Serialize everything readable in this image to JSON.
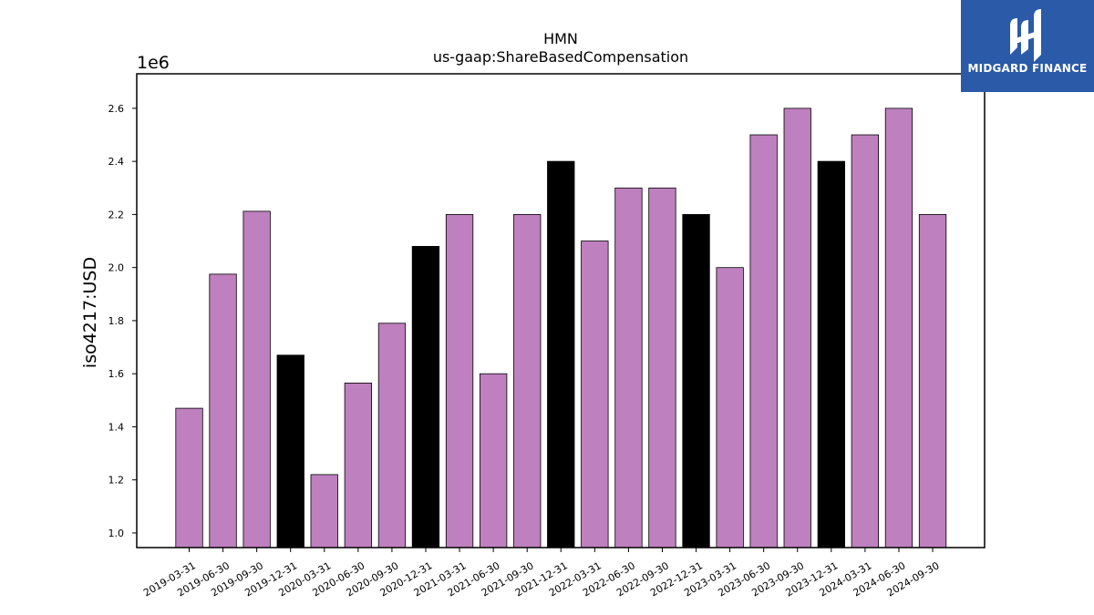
{
  "chart_data": {
    "type": "bar",
    "title": "HMN",
    "subtitle": "us-gaap:ShareBasedCompensation",
    "ylabel": "iso4217:USD",
    "y_offset_label": "1e6",
    "ylim": [
      945000,
      2730000
    ],
    "yticks": [
      1.0,
      1.2,
      1.4,
      1.6,
      1.8,
      2.0,
      2.2,
      2.4,
      2.6
    ],
    "categories": [
      "2019-03-31",
      "2019-06-30",
      "2019-09-30",
      "2019-12-31",
      "2020-03-31",
      "2020-06-30",
      "2020-09-30",
      "2020-12-31",
      "2021-03-31",
      "2021-06-30",
      "2021-09-30",
      "2021-12-31",
      "2022-03-31",
      "2022-06-30",
      "2022-09-30",
      "2022-12-31",
      "2023-03-31",
      "2023-06-30",
      "2023-09-30",
      "2023-12-31",
      "2024-03-31",
      "2024-06-30",
      "2024-09-30"
    ],
    "values": [
      1470000,
      1975000,
      2212000,
      1670000,
      1220000,
      1565000,
      1790000,
      2080000,
      2200000,
      1600000,
      2200000,
      2400000,
      2100000,
      2300000,
      2300000,
      2200000,
      2000000,
      2500000,
      2600000,
      2400000,
      2500000,
      2600000,
      2200000
    ],
    "year_end": [
      false,
      false,
      false,
      true,
      false,
      false,
      false,
      true,
      false,
      false,
      false,
      true,
      false,
      false,
      false,
      true,
      false,
      false,
      false,
      true,
      false,
      false,
      false
    ],
    "colors": {
      "quarter": "#bf80bf",
      "year_end": "#000000",
      "edge": "#000000"
    },
    "grid": false
  },
  "logo": {
    "text": "MIDGARD FINANCE",
    "background": "#2a5aa8"
  }
}
